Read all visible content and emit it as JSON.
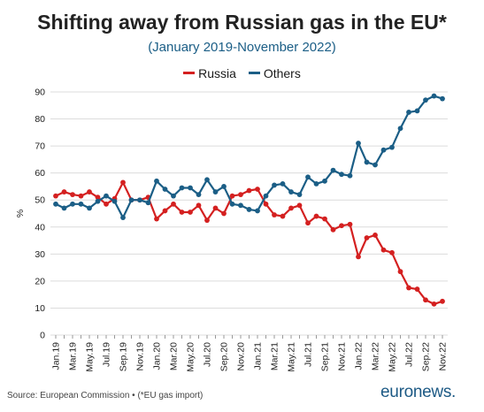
{
  "header": {
    "title": "Shifting away from Russian gas in the EU*",
    "subtitle": "(January 2019-November 2022)"
  },
  "footer": {
    "source": "Source: European Commission • (*EU gas import)",
    "logo_text": "euronews",
    "logo_dot": "."
  },
  "chart_data": {
    "type": "line",
    "ylabel": "%",
    "xlabel": "",
    "ylim": [
      0,
      90
    ],
    "yticks": [
      0,
      10,
      20,
      30,
      40,
      50,
      60,
      70,
      80,
      90
    ],
    "grid": "horizontal",
    "legend_position": "top-center",
    "tick_labels": [
      "Jan.19",
      "Mar.19",
      "May.19",
      "Jul.19",
      "Sep.19",
      "Nov.19",
      "Jan.20",
      "Mar.20",
      "May.20",
      "Jul.20",
      "Sep.20",
      "Nov.20",
      "Jan.21",
      "Mar.21",
      "May.21",
      "Jul.21",
      "Sep.21",
      "Nov.21",
      "Jan.22",
      "Mar.22",
      "May.22",
      "Jul.22",
      "Sep.22",
      "Nov.22"
    ],
    "x": [
      "Jan.19",
      "Feb.19",
      "Mar.19",
      "Apr.19",
      "May.19",
      "Jun.19",
      "Jul.19",
      "Aug.19",
      "Sep.19",
      "Oct.19",
      "Nov.19",
      "Dec.19",
      "Jan.20",
      "Feb.20",
      "Mar.20",
      "Apr.20",
      "May.20",
      "Jun.20",
      "Jul.20",
      "Aug.20",
      "Sep.20",
      "Oct.20",
      "Nov.20",
      "Dec.20",
      "Jan.21",
      "Feb.21",
      "Mar.21",
      "Apr.21",
      "May.21",
      "Jun.21",
      "Jul.21",
      "Aug.21",
      "Sep.21",
      "Oct.21",
      "Nov.21",
      "Dec.21",
      "Jan.22",
      "Feb.22",
      "Mar.22",
      "Apr.22",
      "May.22",
      "Jun.22",
      "Jul.22",
      "Aug.22",
      "Sep.22",
      "Oct.22",
      "Nov.22"
    ],
    "series": [
      {
        "name": "Russia",
        "color": "#d42020",
        "values": [
          51.5,
          53,
          52,
          51.5,
          53,
          51,
          48.5,
          50.5,
          56.5,
          50,
          50,
          51,
          43,
          46,
          48.5,
          45.5,
          45.5,
          48,
          42.5,
          47,
          45,
          51.5,
          52,
          53.5,
          54,
          48.5,
          44.5,
          44,
          47,
          48,
          41.5,
          44,
          43,
          39,
          40.5,
          41,
          29,
          36,
          37,
          31.5,
          30.5,
          23.5,
          17.5,
          17,
          13,
          11.5,
          12.5
        ]
      },
      {
        "name": "Others",
        "color": "#1b5e86",
        "values": [
          48.5,
          47,
          48.5,
          48.5,
          47,
          49.5,
          51.5,
          49.5,
          43.5,
          50,
          50,
          49,
          57,
          54,
          51.5,
          54.5,
          54.5,
          52,
          57.5,
          53,
          55,
          48.5,
          48,
          46.5,
          46,
          51.5,
          55.5,
          56,
          53,
          52,
          58.5,
          56,
          57,
          61,
          59.5,
          59,
          71,
          64,
          63,
          68.5,
          69.5,
          76.5,
          82.5,
          83,
          87,
          88.5,
          87.5
        ]
      }
    ]
  }
}
